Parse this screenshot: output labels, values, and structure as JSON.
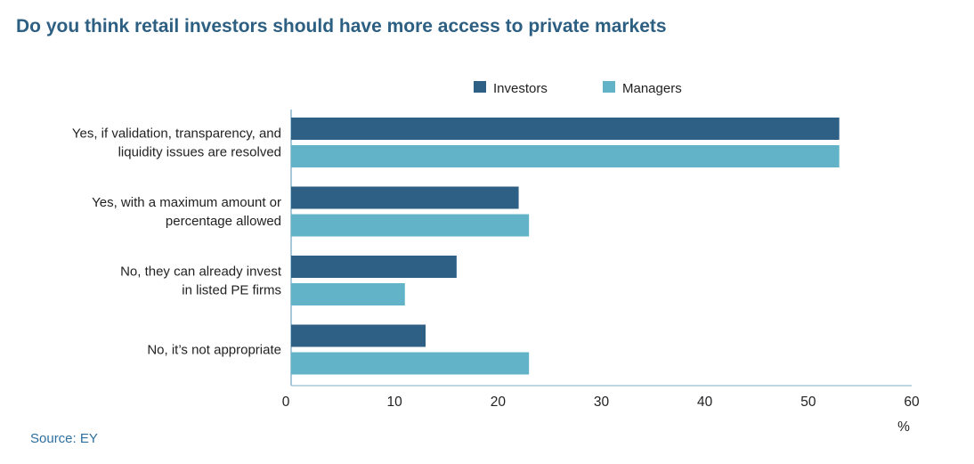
{
  "title": "Do you think retail investors should have more access to private markets",
  "source": "Source: EY",
  "colors": {
    "investors": "#2e5f85",
    "managers": "#62b3c8",
    "title": "#2d5f82",
    "axis": "#a7c8d8"
  },
  "chart_data": {
    "type": "bar",
    "orientation": "horizontal",
    "title": "Do you think retail investors should have more access to private markets",
    "categories": [
      [
        "Yes, if validation, transparency, and",
        "liquidity issues are resolved"
      ],
      [
        "Yes, with a maximum amount or",
        "percentage allowed"
      ],
      [
        "No, they can already invest",
        "in listed PE firms"
      ],
      [
        "No, it’s not appropriate"
      ]
    ],
    "series": [
      {
        "name": "Investors",
        "values": [
          53,
          22,
          16,
          13
        ]
      },
      {
        "name": "Managers",
        "values": [
          53,
          23,
          11,
          23
        ]
      }
    ],
    "xlim": [
      0,
      60
    ],
    "xticks": [
      0,
      10,
      20,
      30,
      40,
      50,
      60
    ],
    "xlabel": "%",
    "ylabel": "",
    "legend": "top-center",
    "grid": false
  }
}
